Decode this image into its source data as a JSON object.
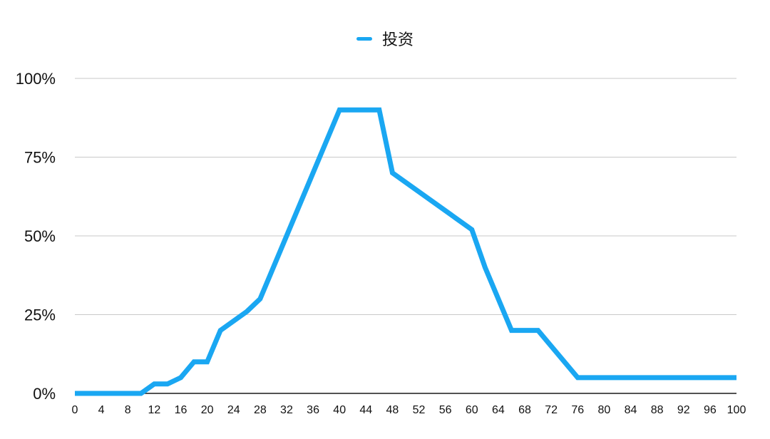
{
  "chart_data": {
    "type": "line",
    "title": "",
    "xlabel": "",
    "ylabel": "",
    "legend_position": "top-center",
    "grid": true,
    "xlim": [
      0,
      100
    ],
    "ylim": [
      0,
      1
    ],
    "x_ticks": [
      0,
      4,
      8,
      12,
      16,
      20,
      24,
      28,
      32,
      36,
      40,
      44,
      48,
      52,
      56,
      60,
      64,
      68,
      72,
      76,
      80,
      84,
      88,
      92,
      96,
      100
    ],
    "y_ticks": [
      {
        "value": 0,
        "label": "0%"
      },
      {
        "value": 0.25,
        "label": "25%"
      },
      {
        "value": 0.5,
        "label": "50%"
      },
      {
        "value": 0.75,
        "label": "75%"
      },
      {
        "value": 1,
        "label": "100%"
      }
    ],
    "series": [
      {
        "name": "投资",
        "color": "#1aa7f2",
        "points": [
          [
            0,
            0
          ],
          [
            10,
            0
          ],
          [
            12,
            0.03
          ],
          [
            14,
            0.03
          ],
          [
            16,
            0.05
          ],
          [
            18,
            0.1
          ],
          [
            20,
            0.1
          ],
          [
            22,
            0.2
          ],
          [
            26,
            0.26
          ],
          [
            28,
            0.3
          ],
          [
            40,
            0.9
          ],
          [
            46,
            0.9
          ],
          [
            48,
            0.7
          ],
          [
            60,
            0.52
          ],
          [
            62,
            0.4
          ],
          [
            66,
            0.2
          ],
          [
            70,
            0.2
          ],
          [
            76,
            0.05
          ],
          [
            100,
            0.05
          ]
        ]
      }
    ],
    "colors": {
      "grid": "#c8c8c8",
      "axis": "#1a1a1a",
      "text": "#111111"
    }
  }
}
